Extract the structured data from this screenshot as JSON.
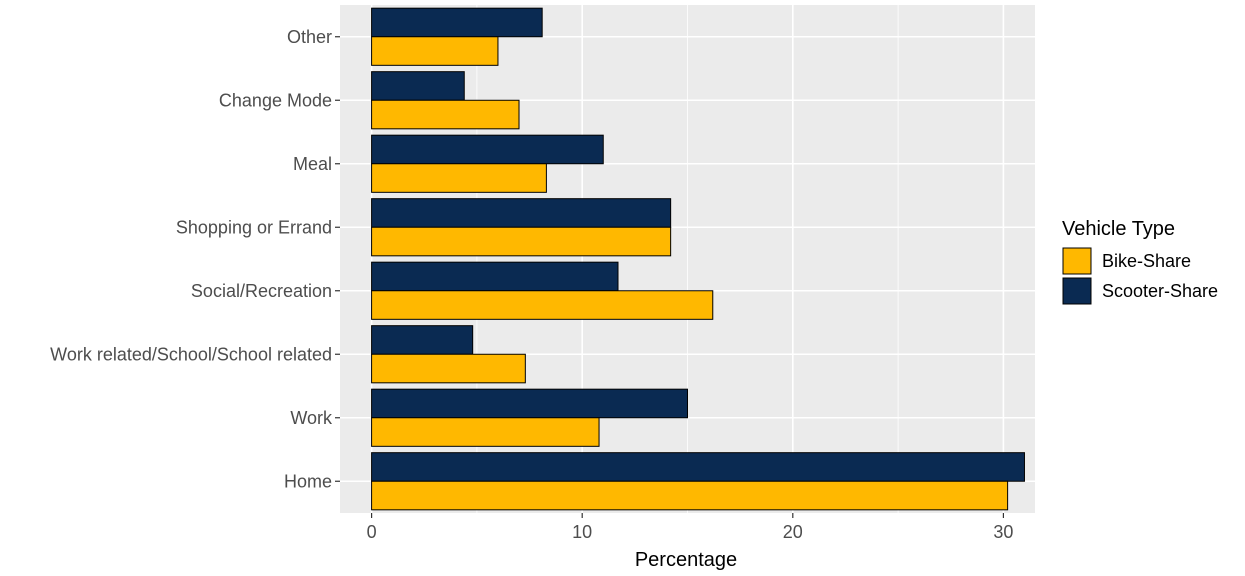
{
  "chart_data": {
    "type": "bar",
    "orientation": "horizontal",
    "categories": [
      "Other",
      "Change Mode",
      "Meal",
      "Shopping or Errand",
      "Social/Recreation",
      "Work related/School/School related",
      "Work",
      "Home"
    ],
    "series": [
      {
        "name": "Scooter-Share",
        "color": "#0a2a52",
        "values": [
          8.1,
          4.4,
          11.0,
          14.2,
          11.7,
          4.8,
          15.0,
          31.0
        ]
      },
      {
        "name": "Bike-Share",
        "color": "#ffb800",
        "values": [
          6.0,
          7.0,
          8.3,
          14.2,
          16.2,
          7.3,
          10.8,
          30.2
        ]
      }
    ],
    "title": "",
    "xlabel": "Percentage",
    "ylabel": "",
    "xlim": [
      -1.5,
      31.5
    ],
    "xticks": [
      0,
      10,
      20,
      30
    ],
    "grid": true,
    "panel_background": "#ebebeb",
    "grid_color": "#ffffff",
    "bar_outline_color": "#000000",
    "legend": {
      "title": "Vehicle Type",
      "position": "right",
      "entries": [
        "Bike-Share",
        "Scooter-Share"
      ]
    }
  }
}
